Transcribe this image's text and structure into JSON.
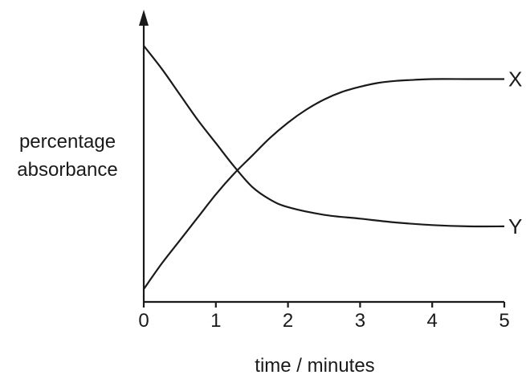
{
  "chart_data": {
    "type": "line",
    "title": "",
    "xlabel": "time / minutes",
    "ylabel_lines": [
      "percentage",
      "absorbance"
    ],
    "xlim": [
      0,
      5
    ],
    "ylim": [
      0,
      100
    ],
    "xticks": [
      "0",
      "1",
      "2",
      "3",
      "4",
      "5"
    ],
    "yticks": [],
    "grid": false,
    "legend": "none",
    "series": [
      {
        "name": "X",
        "x": [
          0,
          0.25,
          0.5,
          0.75,
          1,
          1.25,
          1.5,
          1.75,
          2,
          2.25,
          2.5,
          2.75,
          3,
          3.25,
          3.5,
          3.75,
          4,
          4.5,
          5
        ],
        "y": [
          5,
          15,
          24,
          33,
          42,
          50,
          57,
          64,
          70,
          75,
          79,
          82,
          84,
          85.5,
          86.3,
          86.7,
          87,
          87,
          87
        ]
      },
      {
        "name": "Y",
        "x": [
          0,
          0.25,
          0.5,
          0.75,
          1,
          1.25,
          1.5,
          1.75,
          2,
          2.5,
          3,
          3.5,
          4,
          4.5,
          5
        ],
        "y": [
          100,
          91,
          81,
          71,
          62,
          53,
          45,
          40,
          37,
          34,
          32.5,
          31,
          30,
          29.5,
          29.5
        ]
      }
    ]
  }
}
